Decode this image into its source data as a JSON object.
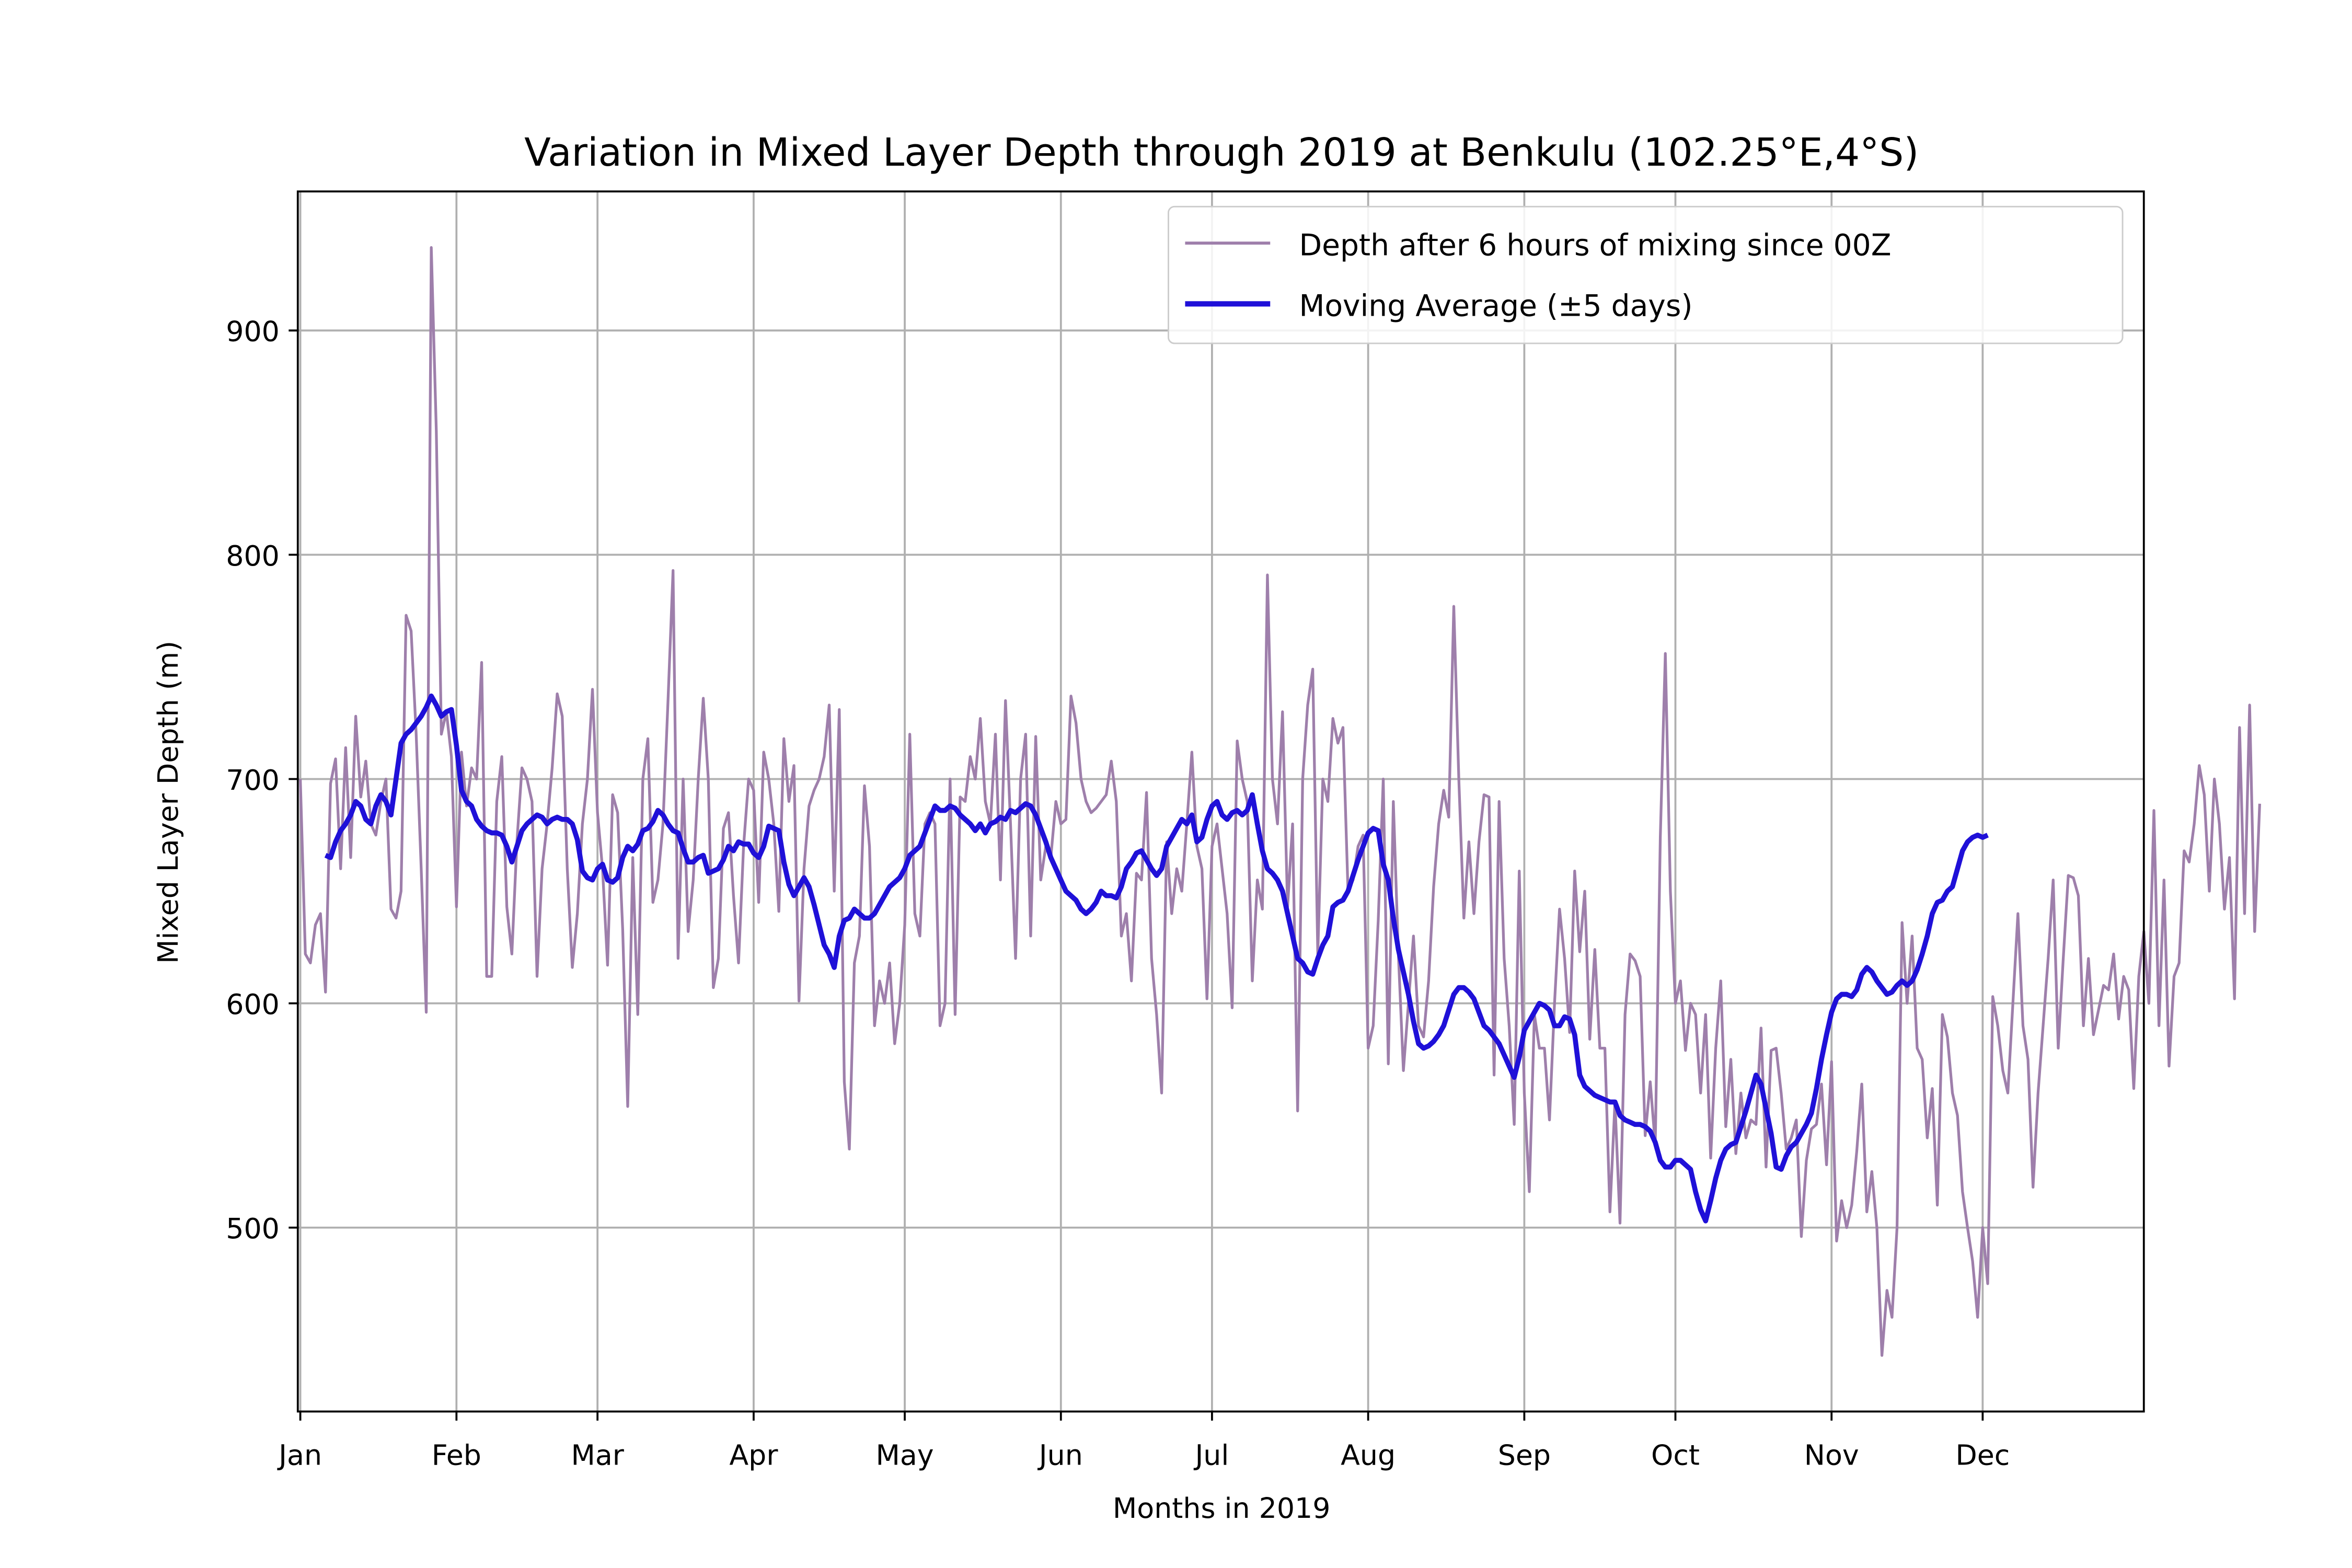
{
  "chart_data": {
    "type": "line",
    "title": "Variation in Mixed Layer Depth through 2019 at Benkulu (102.25°E,4°S)",
    "xlabel": "Months in 2019",
    "ylabel": "Mixed Layer Depth (m)",
    "xlim_day_of_year": [
      0.5,
      367
    ],
    "ylim": [
      418,
      962
    ],
    "yticks": [
      500,
      600,
      700,
      800,
      900
    ],
    "xticks": [
      {
        "label": "Jan",
        "day": 1
      },
      {
        "label": "Feb",
        "day": 32
      },
      {
        "label": "Mar",
        "day": 60
      },
      {
        "label": "Apr",
        "day": 91
      },
      {
        "label": "May",
        "day": 121
      },
      {
        "label": "Jun",
        "day": 152
      },
      {
        "label": "Jul",
        "day": 182
      },
      {
        "label": "Aug",
        "day": 213
      },
      {
        "label": "Sep",
        "day": 244
      },
      {
        "label": "Oct",
        "day": 274
      },
      {
        "label": "Nov",
        "day": 305
      },
      {
        "label": "Dec",
        "day": 335
      }
    ],
    "grid": true,
    "legend_position": "top-right",
    "series": [
      {
        "name": "Depth after 6 hours of mixing since 00Z",
        "color": "#9e7fab",
        "x_start_day": 1,
        "values": [
          700,
          622,
          618,
          635,
          640,
          605,
          698,
          709,
          660,
          714,
          665,
          728,
          692,
          708,
          680,
          675,
          690,
          700,
          642,
          638,
          650,
          773,
          766,
          720,
          660,
          596,
          937,
          855,
          720,
          730,
          710,
          643,
          712,
          688,
          705,
          700,
          752,
          612,
          612,
          690,
          710,
          643,
          622,
          672,
          705,
          700,
          690,
          612,
          660,
          680,
          705,
          738,
          728,
          660,
          616,
          640,
          680,
          700,
          740,
          685,
          660,
          617,
          693,
          685,
          633,
          554,
          665,
          595,
          700,
          718,
          645,
          655,
          680,
          735,
          793,
          620,
          700,
          632,
          655,
          700,
          736,
          700,
          607,
          620,
          678,
          685,
          648,
          618,
          670,
          700,
          695,
          645,
          712,
          700,
          680,
          641,
          718,
          690,
          706,
          601,
          660,
          688,
          695,
          700,
          710,
          733,
          650,
          731,
          565,
          535,
          618,
          630,
          697,
          670,
          590,
          610,
          600,
          618,
          582,
          600,
          635,
          720,
          640,
          630,
          680,
          685,
          680,
          590,
          600,
          700,
          595,
          692,
          690,
          710,
          700,
          727,
          690,
          680,
          720,
          655,
          735,
          680,
          620,
          700,
          720,
          630,
          719,
          655,
          670,
          665,
          690,
          680,
          682,
          737,
          725,
          700,
          690,
          685,
          687,
          690,
          693,
          708,
          690,
          630,
          640,
          610,
          658,
          655,
          694,
          620,
          595,
          560,
          672,
          640,
          660,
          650,
          680,
          712,
          670,
          660,
          602,
          670,
          680,
          660,
          640,
          598,
          717,
          700,
          690,
          610,
          655,
          642,
          791,
          700,
          680,
          730,
          643,
          680,
          552,
          700,
          733,
          749,
          622,
          700,
          690,
          727,
          716,
          723,
          650,
          655,
          670,
          675,
          580,
          590,
          637,
          700,
          573,
          690,
          622,
          570,
          600,
          630,
          590,
          585,
          610,
          652,
          680,
          695,
          683,
          777,
          700,
          638,
          672,
          640,
          672,
          693,
          692,
          568,
          690,
          620,
          590,
          546,
          659,
          560,
          516,
          595,
          580,
          580,
          548,
          600,
          642,
          620,
          587,
          659,
          623,
          650,
          584,
          624,
          580,
          580,
          507,
          556,
          502,
          595,
          622,
          619,
          612,
          541,
          565,
          537,
          674,
          756,
          650,
          600,
          610,
          579,
          600,
          595,
          560,
          595,
          531,
          580,
          610,
          545,
          575,
          533,
          560,
          540,
          548,
          546,
          589,
          527,
          579,
          580,
          560,
          535,
          540,
          548,
          496,
          530,
          544,
          546,
          564,
          528,
          574,
          494,
          512,
          500,
          510,
          534,
          564,
          507,
          525,
          500,
          443,
          472,
          460,
          500,
          636,
          600,
          630,
          580,
          575,
          540,
          562,
          510,
          595,
          585,
          560,
          550,
          516,
          500,
          485,
          460,
          500,
          475,
          603,
          590,
          570,
          560,
          600,
          640,
          590,
          575,
          518,
          560,
          590,
          620,
          655,
          580,
          620,
          657,
          656,
          648,
          590,
          620,
          586,
          597,
          608,
          606,
          622,
          593,
          612,
          606,
          562,
          612,
          632,
          600,
          686,
          590,
          655,
          572,
          612,
          618,
          668,
          663,
          680,
          706,
          693,
          650,
          700,
          680,
          642,
          665,
          602,
          723,
          640,
          733,
          632,
          689
        ]
      },
      {
        "name": "Moving Average (±5 days)",
        "color": "#1f10d8",
        "x_start_day": 6,
        "values": [
          666,
          665,
          672,
          677,
          680,
          684,
          690,
          688,
          682,
          680,
          688,
          693,
          690,
          684,
          700,
          716,
          720,
          722,
          725,
          728,
          732,
          737,
          733,
          728,
          730,
          731,
          715,
          695,
          690,
          688,
          682,
          679,
          677,
          676,
          676,
          675,
          670,
          663,
          670,
          677,
          680,
          682,
          684,
          683,
          680,
          682,
          683,
          682,
          682,
          680,
          673,
          659,
          656,
          655,
          660,
          662,
          655,
          654,
          656,
          665,
          670,
          668,
          671,
          677,
          678,
          681,
          686,
          684,
          680,
          677,
          676,
          669,
          663,
          663,
          665,
          666,
          658,
          659,
          660,
          664,
          670,
          668,
          672,
          671,
          671,
          667,
          665,
          670,
          679,
          678,
          677,
          663,
          653,
          648,
          652,
          656,
          652,
          644,
          635,
          626,
          622,
          616,
          630,
          637,
          638,
          642,
          640,
          638,
          638,
          640,
          644,
          648,
          652,
          654,
          656,
          660,
          666,
          668,
          670,
          676,
          682,
          688,
          686,
          686,
          688,
          687,
          684,
          682,
          680,
          677,
          680,
          676,
          680,
          681,
          683,
          682,
          686,
          685,
          687,
          689,
          688,
          684,
          678,
          672,
          665,
          660,
          655,
          650,
          648,
          646,
          642,
          640,
          642,
          645,
          650,
          648,
          648,
          647,
          652,
          660,
          663,
          667,
          668,
          664,
          660,
          657,
          660,
          670,
          674,
          678,
          682,
          680,
          684,
          672,
          674,
          682,
          688,
          690,
          684,
          682,
          685,
          686,
          684,
          686,
          693,
          680,
          668,
          660,
          658,
          655,
          650,
          640,
          630,
          620,
          618,
          614,
          613,
          620,
          626,
          630,
          643,
          645,
          646,
          650,
          657,
          664,
          670,
          676,
          678,
          677,
          662,
          655,
          638,
          624,
          614,
          604,
          592,
          582,
          580,
          581,
          583,
          586,
          590,
          597,
          604,
          607,
          607,
          605,
          602,
          596,
          590,
          588,
          585,
          582,
          577,
          572,
          567,
          576,
          588,
          592,
          596,
          600,
          599,
          597,
          590,
          590,
          594,
          593,
          586,
          568,
          563,
          561,
          559,
          558,
          557,
          556,
          556,
          550,
          548,
          547,
          546,
          546,
          545,
          543,
          538,
          530,
          527,
          527,
          530,
          530,
          528,
          526,
          516,
          508,
          503,
          512,
          522,
          530,
          535,
          537,
          538,
          545,
          552,
          560,
          568,
          564,
          553,
          542,
          527,
          526,
          532,
          536,
          538,
          542,
          546,
          551,
          562,
          575,
          586,
          596,
          602,
          604,
          604,
          603,
          606,
          613,
          616,
          614,
          610,
          607,
          604,
          605,
          608,
          610,
          608,
          610,
          615,
          622,
          630,
          640,
          645,
          646,
          650,
          652,
          660,
          668,
          672,
          674,
          675,
          674,
          675
        ]
      }
    ]
  }
}
